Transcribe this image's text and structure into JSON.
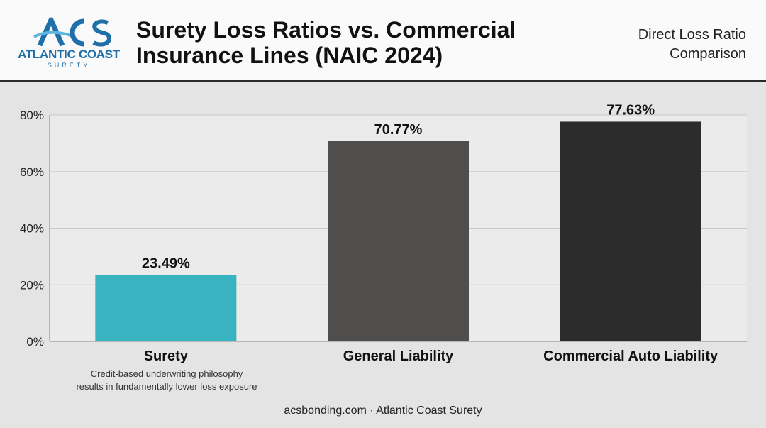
{
  "brand": {
    "initials": "ACS",
    "name": "ATLANTIC COAST",
    "sub": "SURETY",
    "colors": {
      "primary": "#1f6fa8",
      "accent": "#5bb6e0"
    }
  },
  "header": {
    "title_lines": [
      "Surety Loss Ratios vs. Commercial",
      "Insurance Lines (NAIC 2024)"
    ],
    "subtitle_lines": [
      "Direct Loss Ratio",
      "Comparison"
    ]
  },
  "chart_data": {
    "type": "bar",
    "title": "Surety Loss Ratios vs. Commercial Insurance Lines (NAIC 2024)",
    "subtitle": "Direct Loss Ratio Comparison",
    "categories": [
      "Surety",
      "General Liability",
      "Commercial Auto Liability"
    ],
    "values": [
      23.49,
      70.77,
      77.63
    ],
    "value_labels": [
      "23.49%",
      "70.77%",
      "77.63%"
    ],
    "colors": [
      "#3ab3c0",
      "#4f4e4d",
      "#2c2c2c"
    ],
    "ylim": [
      0,
      80
    ],
    "yticks": [
      0,
      20,
      40,
      60,
      80
    ],
    "ytick_labels": [
      "0%",
      "20%",
      "40%",
      "60%",
      "80%"
    ],
    "xlabel": "",
    "ylabel": "",
    "grid": true,
    "annotation_lines": [
      "Credit-based underwriting philosophy",
      "results in fundamentally lower loss exposure"
    ]
  },
  "footer": {
    "text": "acsbonding.com · Atlantic Coast Surety"
  }
}
